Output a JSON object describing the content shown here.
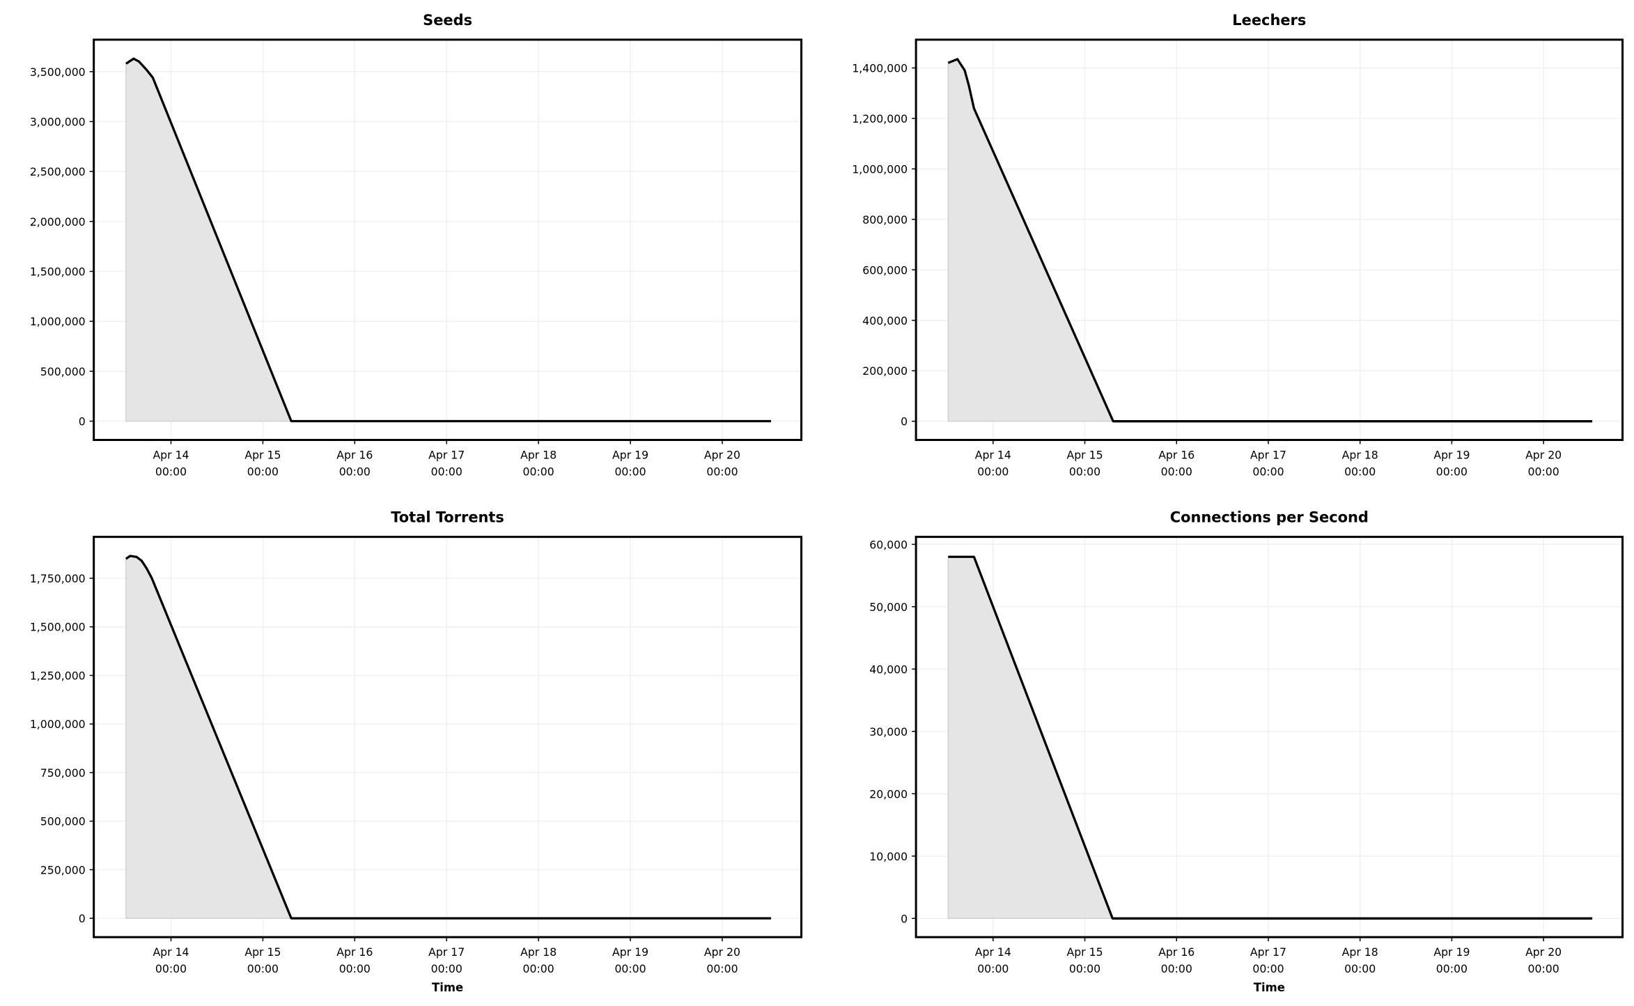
{
  "chart_data": [
    {
      "type": "area",
      "title": "Seeds",
      "xlabel": "",
      "ylabel": "",
      "xlim": [
        "Apr 13 03:50",
        "Apr 20 20:40"
      ],
      "ylim": [
        -188000,
        3820000
      ],
      "yticks": [
        0,
        500000,
        1000000,
        1500000,
        2000000,
        2500000,
        3000000,
        3500000
      ],
      "ytick_labels": [
        "0",
        "500,000",
        "1,000,000",
        "1,500,000",
        "2,000,000",
        "2,500,000",
        "3,000,000",
        "3,500,000"
      ],
      "xticks": [
        "Apr 14 00:00",
        "Apr 15 00:00",
        "Apr 16 00:00",
        "Apr 17 00:00",
        "Apr 18 00:00",
        "Apr 19 00:00",
        "Apr 20 00:00"
      ],
      "xtick_labels": [
        [
          "Apr 14",
          "00:00"
        ],
        [
          "Apr 15",
          "00:00"
        ],
        [
          "Apr 16",
          "00:00"
        ],
        [
          "Apr 17",
          "00:00"
        ],
        [
          "Apr 18",
          "00:00"
        ],
        [
          "Apr 19",
          "00:00"
        ],
        [
          "Apr 20",
          "00:00"
        ]
      ],
      "grid": true,
      "x": [
        "Apr 13 12:15",
        "Apr 13 14:15",
        "Apr 13 15:40",
        "Apr 13 17:35",
        "Apr 13 19:15",
        "Apr 15 07:25",
        "Apr 20 12:45"
      ],
      "y": [
        3580000,
        3630000,
        3600000,
        3520000,
        3440000,
        0,
        0
      ]
    },
    {
      "type": "area",
      "title": "Leechers",
      "xlabel": "",
      "ylabel": "",
      "xlim": [
        "Apr 13 03:50",
        "Apr 20 20:40"
      ],
      "ylim": [
        -74000,
        1512000
      ],
      "yticks": [
        0,
        200000,
        400000,
        600000,
        800000,
        1000000,
        1200000,
        1400000
      ],
      "ytick_labels": [
        "0",
        "200,000",
        "400,000",
        "600,000",
        "800,000",
        "1,000,000",
        "1,200,000",
        "1,400,000"
      ],
      "xticks": [
        "Apr 14 00:00",
        "Apr 15 00:00",
        "Apr 16 00:00",
        "Apr 17 00:00",
        "Apr 18 00:00",
        "Apr 19 00:00",
        "Apr 20 00:00"
      ],
      "xtick_labels": [
        [
          "Apr 14",
          "00:00"
        ],
        [
          "Apr 15",
          "00:00"
        ],
        [
          "Apr 16",
          "00:00"
        ],
        [
          "Apr 17",
          "00:00"
        ],
        [
          "Apr 18",
          "00:00"
        ],
        [
          "Apr 19",
          "00:00"
        ],
        [
          "Apr 20",
          "00:00"
        ]
      ],
      "grid": true,
      "x": [
        "Apr 13 12:15",
        "Apr 13 14:40",
        "Apr 13 16:35",
        "Apr 13 17:40",
        "Apr 13 19:00",
        "Apr 15 07:25",
        "Apr 20 12:45"
      ],
      "y": [
        1420000,
        1435000,
        1390000,
        1330000,
        1240000,
        0,
        0
      ]
    },
    {
      "type": "area",
      "title": "Total Torrents",
      "xlabel": "Time",
      "ylabel": "",
      "xlim": [
        "Apr 13 03:50",
        "Apr 20 20:40"
      ],
      "ylim": [
        -97000,
        1963000
      ],
      "yticks": [
        0,
        250000,
        500000,
        750000,
        1000000,
        1250000,
        1500000,
        1750000
      ],
      "ytick_labels": [
        "0",
        "250,000",
        "500,000",
        "750,000",
        "1,000,000",
        "1,250,000",
        "1,500,000",
        "1,750,000"
      ],
      "xticks": [
        "Apr 14 00:00",
        "Apr 15 00:00",
        "Apr 16 00:00",
        "Apr 17 00:00",
        "Apr 18 00:00",
        "Apr 19 00:00",
        "Apr 20 00:00"
      ],
      "xtick_labels": [
        [
          "Apr 14",
          "00:00"
        ],
        [
          "Apr 15",
          "00:00"
        ],
        [
          "Apr 16",
          "00:00"
        ],
        [
          "Apr 17",
          "00:00"
        ],
        [
          "Apr 18",
          "00:00"
        ],
        [
          "Apr 19",
          "00:00"
        ],
        [
          "Apr 20",
          "00:00"
        ]
      ],
      "grid": true,
      "x": [
        "Apr 13 12:15",
        "Apr 13 13:20",
        "Apr 13 15:00",
        "Apr 13 16:20",
        "Apr 13 17:40",
        "Apr 13 19:00",
        "Apr 15 07:25",
        "Apr 20 12:45"
      ],
      "y": [
        1850000,
        1865000,
        1860000,
        1840000,
        1800000,
        1750000,
        0,
        0
      ]
    },
    {
      "type": "area",
      "title": "Connections per Second",
      "xlabel": "Time",
      "ylabel": "",
      "xlim": [
        "Apr 13 03:50",
        "Apr 20 20:40"
      ],
      "ylim": [
        -3000,
        61200
      ],
      "yticks": [
        0,
        10000,
        20000,
        30000,
        40000,
        50000,
        60000
      ],
      "ytick_labels": [
        "0",
        "10,000",
        "20,000",
        "30,000",
        "40,000",
        "50,000",
        "60,000"
      ],
      "xticks": [
        "Apr 14 00:00",
        "Apr 15 00:00",
        "Apr 16 00:00",
        "Apr 17 00:00",
        "Apr 18 00:00",
        "Apr 19 00:00",
        "Apr 20 00:00"
      ],
      "xtick_labels": [
        [
          "Apr 14",
          "00:00"
        ],
        [
          "Apr 15",
          "00:00"
        ],
        [
          "Apr 16",
          "00:00"
        ],
        [
          "Apr 17",
          "00:00"
        ],
        [
          "Apr 18",
          "00:00"
        ],
        [
          "Apr 19",
          "00:00"
        ],
        [
          "Apr 20",
          "00:00"
        ]
      ],
      "grid": true,
      "x": [
        "Apr 13 12:15",
        "Apr 13 19:00",
        "Apr 15 07:15",
        "Apr 20 12:45"
      ],
      "y": [
        58000,
        58000,
        0,
        0
      ]
    }
  ],
  "colors": {
    "line": "#000000",
    "fill": "#e5e5e5",
    "fill_edge": "#d0d0d0",
    "grid": "#f0f0f0"
  }
}
